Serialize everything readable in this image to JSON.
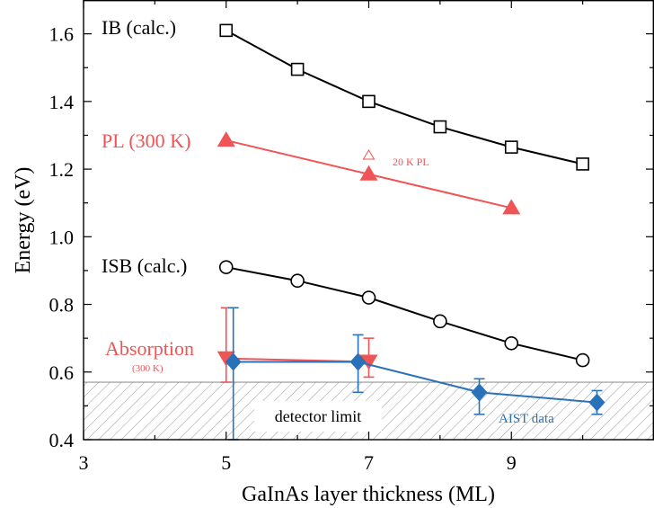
{
  "chart_data": {
    "type": "line",
    "xlabel": "GaInAs layer thickness (ML)",
    "ylabel": "Energy (eV)",
    "xlim": [
      3,
      11
    ],
    "ylim": [
      0.4,
      1.7
    ],
    "x_ticks": [
      "3",
      "5",
      "7",
      "9"
    ],
    "y_ticks": [
      "0.4",
      "0.6",
      "0.8",
      "1.0",
      "1.2",
      "1.4",
      "1.6"
    ],
    "grid": false,
    "colors": {
      "black": "#000000",
      "red": "#f05454",
      "blue": "#2a72b8"
    },
    "series": [
      {
        "name": "IB (calc.)",
        "color": "#000000",
        "marker": "open-square",
        "points": [
          [
            5,
            1.61
          ],
          [
            6,
            1.495
          ],
          [
            7,
            1.4
          ],
          [
            8,
            1.325
          ],
          [
            9,
            1.265
          ],
          [
            10,
            1.215
          ]
        ]
      },
      {
        "name": "PL (300 K)",
        "color": "#f05454",
        "marker": "filled-triangle-up",
        "points": [
          [
            5,
            1.285
          ],
          [
            7,
            1.185
          ],
          [
            9,
            1.085
          ]
        ]
      },
      {
        "name": "ISB (calc.)",
        "color": "#000000",
        "marker": "open-circle",
        "points": [
          [
            5,
            0.91
          ],
          [
            6,
            0.87
          ],
          [
            7,
            0.82
          ],
          [
            8,
            0.75
          ],
          [
            9,
            0.685
          ],
          [
            10,
            0.635
          ]
        ]
      },
      {
        "name": "Absorption",
        "sublabel": "(300 K)",
        "color": "#f05454",
        "marker": "filled-triangle-down",
        "points": [
          [
            5,
            0.64
          ],
          [
            7,
            0.63
          ]
        ],
        "errors": [
          [
            0.57,
            0.79
          ],
          [
            0.585,
            0.7
          ]
        ]
      },
      {
        "name": "AIST data",
        "color": "#2a72b8",
        "marker": "filled-diamond",
        "points": [
          [
            5.1,
            0.63
          ],
          [
            6.85,
            0.63
          ],
          [
            8.55,
            0.54
          ],
          [
            10.2,
            0.51
          ]
        ],
        "errors": [
          [
            0.4,
            0.79
          ],
          [
            0.54,
            0.71
          ],
          [
            0.475,
            0.58
          ],
          [
            0.475,
            0.545
          ]
        ]
      }
    ],
    "extra_points": [
      {
        "name": "20 K PL",
        "x": 7,
        "y": 1.24,
        "marker": "open-triangle-up",
        "color": "#f05454"
      }
    ],
    "regions": [
      {
        "name": "detector limit",
        "y_min": 0.4,
        "y_max": 0.57,
        "fill": "hatch"
      }
    ],
    "labels": {
      "ib": "IB (calc.)",
      "pl": "PL (300 K)",
      "pl20k": "20 K PL",
      "isb": "ISB (calc.)",
      "abs": "Absorption",
      "abs_sub": "(300 K)",
      "aist": "AIST data",
      "detector": "detector limit"
    }
  }
}
